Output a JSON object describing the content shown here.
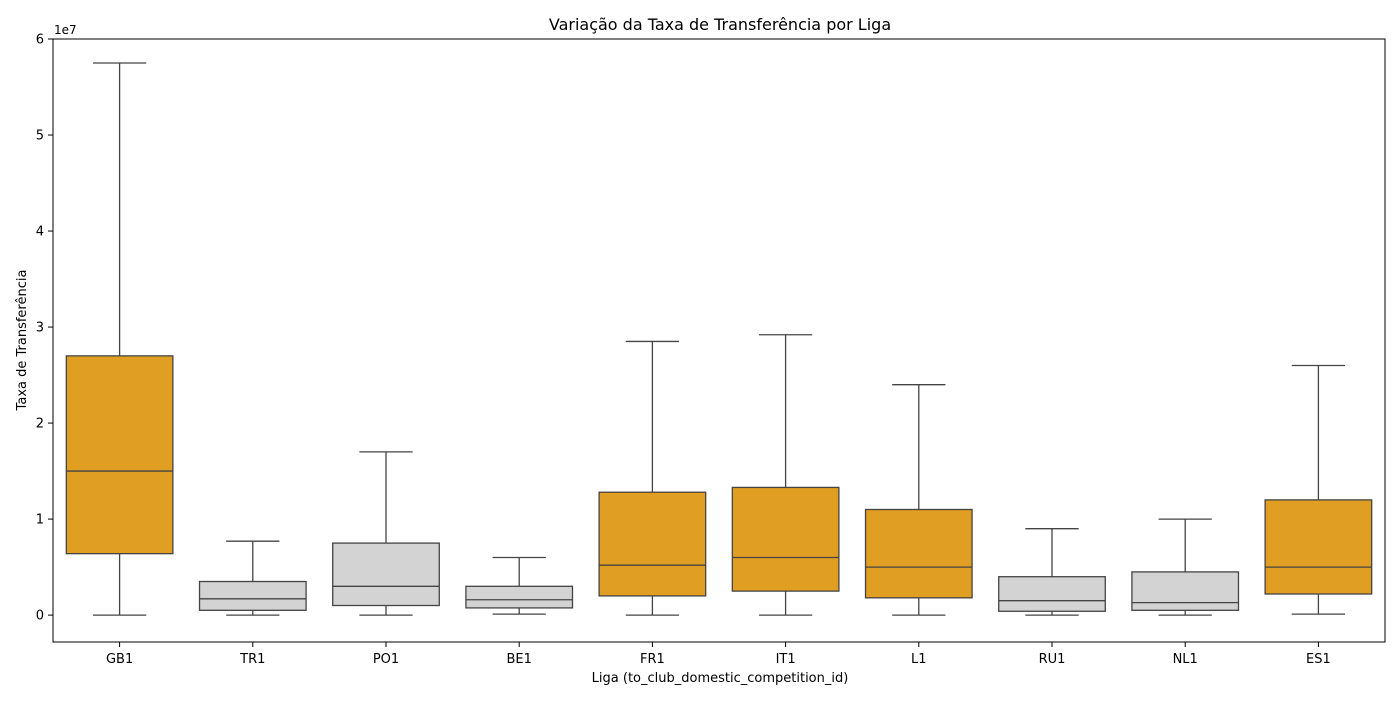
{
  "chart_data": {
    "type": "box",
    "title": "Variação da Taxa de Transferência por Liga",
    "xlabel": "Liga (to_club_domestic_competition_id)",
    "ylabel": "Taxa de Transferência",
    "y_offset_label": "1e7",
    "y_scale": 10000000,
    "ylim": [
      -2800000,
      60000000
    ],
    "y_ticks": [
      0,
      1,
      2,
      3,
      4,
      5,
      6
    ],
    "y_tick_labels": [
      "0",
      "1",
      "2",
      "3",
      "4",
      "5",
      "6"
    ],
    "grid": false,
    "legend": "none",
    "categories": [
      "GB1",
      "TR1",
      "PO1",
      "BE1",
      "FR1",
      "IT1",
      "L1",
      "RU1",
      "NL1",
      "ES1"
    ],
    "boxes": [
      {
        "league": "GB1",
        "whisker_low": 0,
        "q1": 6400000,
        "median": 15000000,
        "q3": 27000000,
        "whisker_high": 57500000,
        "highlight": true
      },
      {
        "league": "TR1",
        "whisker_low": 0,
        "q1": 500000,
        "median": 1700000,
        "q3": 3500000,
        "whisker_high": 7700000,
        "highlight": false
      },
      {
        "league": "PO1",
        "whisker_low": 0,
        "q1": 1000000,
        "median": 3000000,
        "q3": 7500000,
        "whisker_high": 17000000,
        "highlight": false
      },
      {
        "league": "BE1",
        "whisker_low": 100000,
        "q1": 750000,
        "median": 1600000,
        "q3": 3000000,
        "whisker_high": 6000000,
        "highlight": false
      },
      {
        "league": "FR1",
        "whisker_low": 0,
        "q1": 2000000,
        "median": 5200000,
        "q3": 12800000,
        "whisker_high": 28500000,
        "highlight": true
      },
      {
        "league": "IT1",
        "whisker_low": 0,
        "q1": 2500000,
        "median": 6000000,
        "q3": 13300000,
        "whisker_high": 29200000,
        "highlight": true
      },
      {
        "league": "L1",
        "whisker_low": 0,
        "q1": 1800000,
        "median": 5000000,
        "q3": 11000000,
        "whisker_high": 24000000,
        "highlight": true
      },
      {
        "league": "RU1",
        "whisker_low": 0,
        "q1": 400000,
        "median": 1500000,
        "q3": 4000000,
        "whisker_high": 9000000,
        "highlight": false
      },
      {
        "league": "NL1",
        "whisker_low": 0,
        "q1": 500000,
        "median": 1300000,
        "q3": 4500000,
        "whisker_high": 10000000,
        "highlight": false
      },
      {
        "league": "ES1",
        "whisker_low": 100000,
        "q1": 2200000,
        "median": 5000000,
        "q3": 12000000,
        "whisker_high": 26000000,
        "highlight": true
      }
    ],
    "colors": {
      "highlight": "#e09e22",
      "normal": "#d3d3d3",
      "line": "#444444",
      "axis": "#000000"
    }
  }
}
